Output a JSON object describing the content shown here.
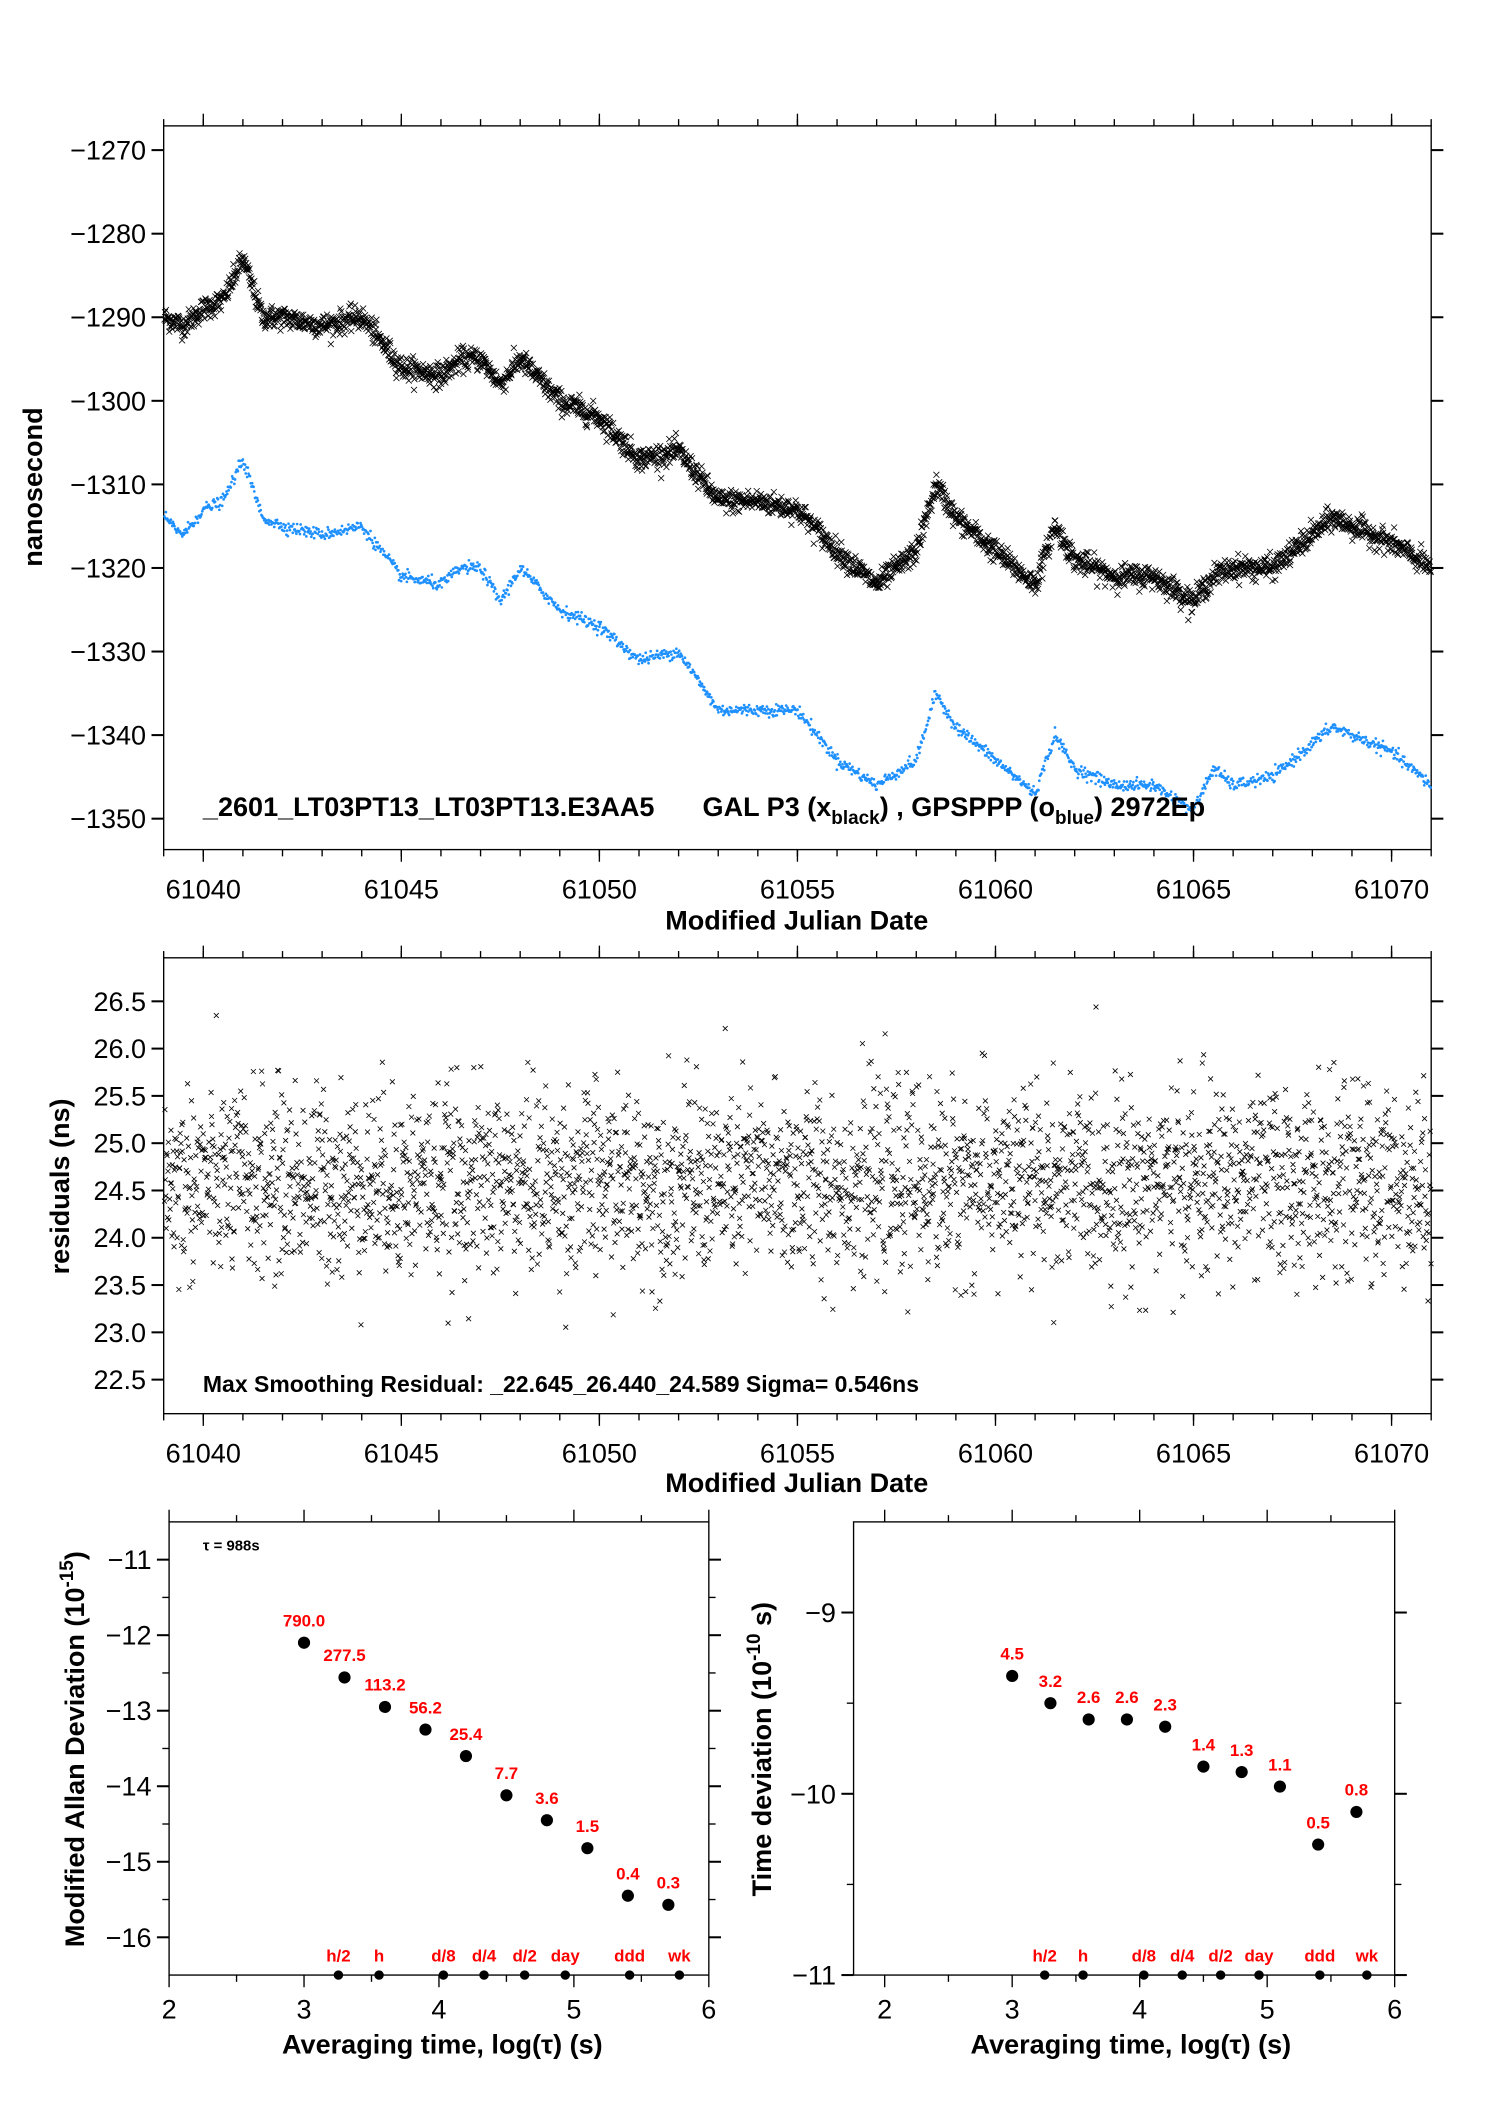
{
  "chart_data": [
    {
      "type": "scatter",
      "title": "_2601_LT03PT13_LT03PT13.E3AA5    GAL P3 (x_black) ,  GPSPPP (o_blue)  2972Ep",
      "title_parts": {
        "main": "_2601_LT03PT13_LT03PT13.E3AA5",
        "s1": "GAL P3 (x",
        "sub1": "black",
        "s2": ") ,  GPSPPP (o",
        "sub2": "blue",
        "s3": ")  2972Ep"
      },
      "xlabel": "Modified Julian Date",
      "ylabel": "nanosecond",
      "xlim": [
        61039,
        61071
      ],
      "ylim": [
        -1353.7,
        -1267.1
      ],
      "xticks": [
        61040,
        61045,
        61050,
        61055,
        61060,
        61065,
        61070
      ],
      "yticks": [
        -1270,
        -1280,
        -1290,
        -1300,
        -1310,
        -1320,
        -1330,
        -1340,
        -1350
      ],
      "series": [
        {
          "name": "GAL P3",
          "marker": "x",
          "color": "#000000",
          "x": [
            61039,
            61039.5,
            61040,
            61040.5,
            61041,
            61041.5,
            61042,
            61043,
            61044,
            61045,
            61046,
            61046.5,
            61047,
            61047.5,
            61048,
            61049,
            61050,
            61051,
            61052,
            61053,
            61054,
            61055,
            61056,
            61057,
            61058,
            61058.5,
            61059,
            61060,
            61061,
            61061.5,
            61062,
            61063,
            61064,
            61065,
            61065.5,
            61066,
            61067,
            61068,
            61068.5,
            61069,
            61070,
            61071
          ],
          "y": [
            -1290,
            -1291,
            -1289,
            -1288,
            -1283,
            -1290,
            -1290,
            -1291,
            -1290,
            -1296,
            -1297,
            -1295,
            -1295,
            -1298,
            -1295,
            -1300,
            -1302,
            -1307,
            -1306,
            -1312,
            -1312,
            -1313,
            -1318,
            -1322,
            -1318,
            -1310,
            -1314,
            -1318,
            -1322,
            -1315,
            -1319,
            -1321,
            -1321,
            -1324,
            -1321,
            -1320,
            -1320,
            -1316,
            -1314,
            -1315,
            -1317,
            -1320
          ]
        },
        {
          "name": "GPSPPP",
          "marker": "o",
          "color": "#1e90ff",
          "x": [
            61039,
            61039.5,
            61040,
            61040.5,
            61041,
            61041.5,
            61042,
            61043,
            61044,
            61045,
            61046,
            61046.5,
            61047,
            61047.5,
            61048,
            61049,
            61050,
            61051,
            61052,
            61053,
            61054,
            61055,
            61056,
            61057,
            61058,
            61058.5,
            61059,
            61060,
            61061,
            61061.5,
            61062,
            61063,
            61064,
            61065,
            61065.5,
            61066,
            61067,
            61068,
            61068.5,
            61069,
            61070,
            61071
          ],
          "y": [
            -1314,
            -1316,
            -1313,
            -1312,
            -1307,
            -1314,
            -1315,
            -1316,
            -1315,
            -1321,
            -1322,
            -1320,
            -1320,
            -1324,
            -1320,
            -1325,
            -1327,
            -1331,
            -1330,
            -1337,
            -1337,
            -1337,
            -1343,
            -1346,
            -1343,
            -1335,
            -1339,
            -1343,
            -1347,
            -1340,
            -1344,
            -1346,
            -1346,
            -1349,
            -1344,
            -1346,
            -1345,
            -1341,
            -1339,
            -1340,
            -1342,
            -1346
          ]
        }
      ]
    },
    {
      "type": "scatter",
      "xlabel": "Modified Julian Date",
      "ylabel": "residuals (ns)",
      "xlim": [
        61039,
        61071
      ],
      "ylim": [
        22.14,
        26.96
      ],
      "xticks": [
        61040,
        61045,
        61050,
        61055,
        61060,
        61065,
        61070
      ],
      "yticks": [
        "22.5",
        "23.0",
        "23.5",
        "24.0",
        "24.5",
        "25.0",
        "25.5",
        "26.0",
        "26.5"
      ],
      "annotation": "Max Smoothing Residual: _22.645_26.440_24.589  Sigma= 0.546ns",
      "series": [
        {
          "name": "residuals",
          "marker": "x",
          "color": "#000000",
          "min": 22.645,
          "max": 26.44,
          "mean": 24.589,
          "sigma": 0.546
        }
      ]
    },
    {
      "type": "scatter",
      "xlabel": "Averaging time, log(τ) (s)",
      "ylabel_main": "Modified Allan Deviation (10",
      "ylabel_sup": "-15",
      "ylabel_end": ")",
      "annotation": "τ = 988s",
      "xlim": [
        2,
        6
      ],
      "ylim": [
        -16.5,
        -10.5
      ],
      "xticks": [
        "2",
        "3",
        "4",
        "5",
        "6"
      ],
      "yticks": [
        "-11",
        "-12",
        "-13",
        "-14",
        "-15",
        "-16"
      ],
      "x": [
        3.0,
        3.3,
        3.6,
        3.9,
        4.2,
        4.5,
        4.8,
        5.1,
        5.4,
        5.7
      ],
      "y": [
        -12.1,
        -12.56,
        -12.95,
        -13.25,
        -13.6,
        -14.12,
        -14.45,
        -14.82,
        -15.45,
        -15.57
      ],
      "labels": [
        "790.0",
        "277.5",
        "113.2",
        "56.2",
        "25.4",
        "7.7",
        "3.6",
        "1.5",
        "0.4",
        "0.3"
      ],
      "markers": [
        {
          "label": "h/2",
          "x": 3.255
        },
        {
          "label": "h",
          "x": 3.556
        },
        {
          "label": "d/8",
          "x": 4.033
        },
        {
          "label": "d/4",
          "x": 4.334
        },
        {
          "label": "d/2",
          "x": 4.635
        },
        {
          "label": "day",
          "x": 4.936
        },
        {
          "label": "ddd",
          "x": 5.413
        },
        {
          "label": "wk",
          "x": 5.782
        }
      ]
    },
    {
      "type": "scatter",
      "xlabel": "Averaging time, log(τ) (s)",
      "ylabel_main": "Time deviation (10",
      "ylabel_sup": "-10",
      "ylabel_end": " s)",
      "xlim": [
        1.756,
        6
      ],
      "ylim": [
        -11,
        -8.5
      ],
      "xticks": [
        "2",
        "3",
        "4",
        "5",
        "6"
      ],
      "yticks": [
        "-9",
        "-10",
        "-11"
      ],
      "x": [
        3.0,
        3.3,
        3.6,
        3.9,
        4.2,
        4.5,
        4.8,
        5.1,
        5.4,
        5.7
      ],
      "y": [
        -9.35,
        -9.5,
        -9.59,
        -9.59,
        -9.63,
        -9.85,
        -9.88,
        -9.96,
        -10.28,
        -10.1
      ],
      "labels": [
        "4.5",
        "3.2",
        "2.6",
        "2.6",
        "2.3",
        "1.4",
        "1.3",
        "1.1",
        "0.5",
        "0.8"
      ],
      "markers": [
        {
          "label": "h/2",
          "x": 3.255
        },
        {
          "label": "h",
          "x": 3.556
        },
        {
          "label": "d/8",
          "x": 4.033
        },
        {
          "label": "d/4",
          "x": 4.334
        },
        {
          "label": "d/2",
          "x": 4.635
        },
        {
          "label": "day",
          "x": 4.936
        },
        {
          "label": "ddd",
          "x": 5.413
        },
        {
          "label": "wk",
          "x": 5.782
        }
      ]
    }
  ]
}
